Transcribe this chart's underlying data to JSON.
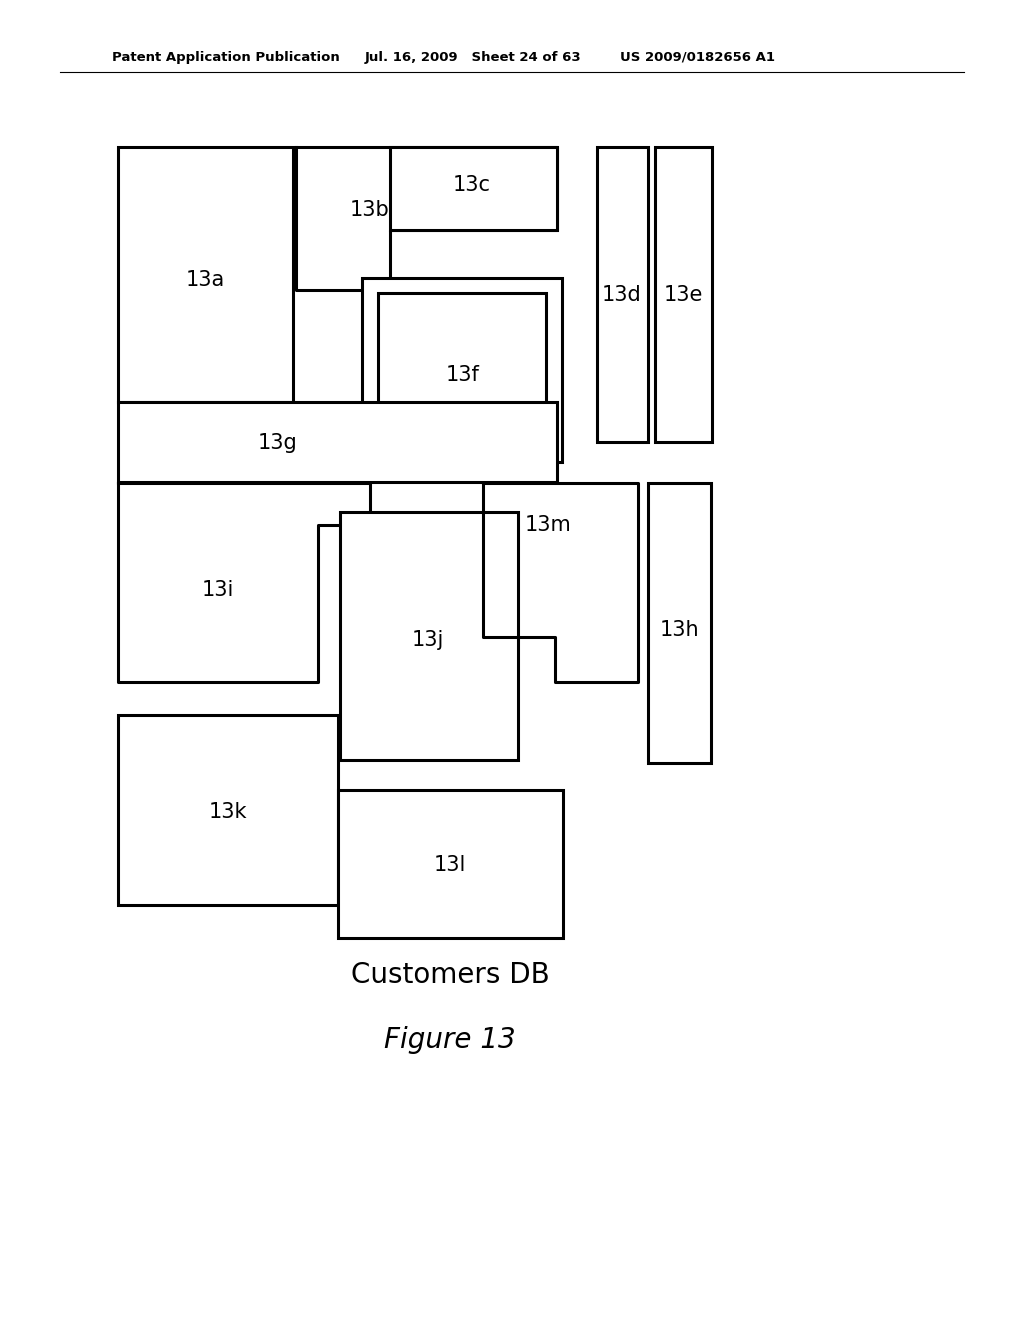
{
  "header_left": "Patent Application Publication",
  "header_mid": "Jul. 16, 2009   Sheet 24 of 63",
  "header_right": "US 2009/0182656 A1",
  "caption": "Customers DB",
  "figure_label": "Figure 13",
  "bg_color": "#ffffff",
  "line_color": "#000000",
  "line_width": 2.2
}
